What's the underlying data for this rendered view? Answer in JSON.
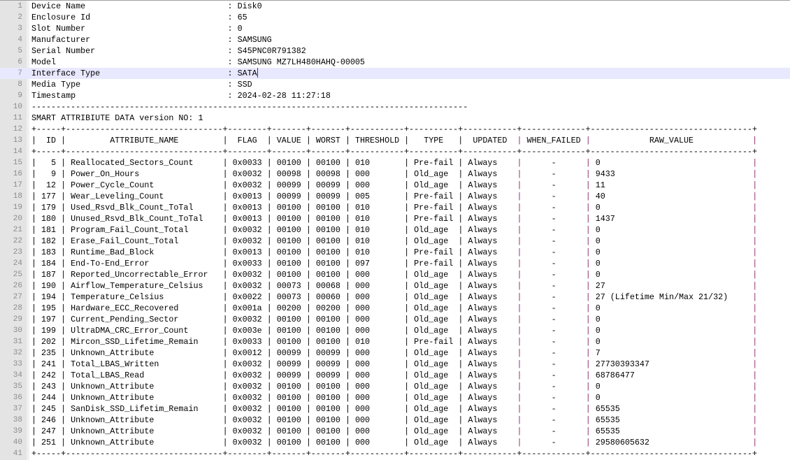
{
  "device_info": [
    {
      "label": "Device Name",
      "value": "Disk0"
    },
    {
      "label": "Enclosure Id",
      "value": "65"
    },
    {
      "label": "Slot Number",
      "value": "0"
    },
    {
      "label": "Manufacturer",
      "value": "SAMSUNG"
    },
    {
      "label": "Serial Number",
      "value": "S45PNC0R791382"
    },
    {
      "label": "Model",
      "value": "SAMSUNG MZ7LH480HAHQ-00005"
    },
    {
      "label": "Interface Type",
      "value": "SATA"
    },
    {
      "label": "Media Type",
      "value": "SSD"
    },
    {
      "label": "Timestamp",
      "value": "2024-02-28 11:27:18"
    }
  ],
  "current_line": 7,
  "smart_title": "SMART ATTRIBIUTE DATA version NO: 1",
  "table": {
    "headers": [
      "ID",
      "ATTRIBUTE_NAME",
      "FLAG",
      "VALUE",
      "WORST",
      "THRESHOLD",
      "TYPE",
      "UPDATED",
      "WHEN_FAILED",
      "RAW_VALUE"
    ],
    "rows": [
      [
        "5",
        "Reallocated_Sectors_Count",
        "0x0033",
        "00100",
        "00100",
        "010",
        "Pre-fail",
        "Always",
        "-",
        "0"
      ],
      [
        "9",
        "Power_On_Hours",
        "0x0032",
        "00098",
        "00098",
        "000",
        "Old_age",
        "Always",
        "-",
        "9433"
      ],
      [
        "12",
        "Power_Cycle_Count",
        "0x0032",
        "00099",
        "00099",
        "000",
        "Old_age",
        "Always",
        "-",
        "11"
      ],
      [
        "177",
        "Wear_Leveling_Count",
        "0x0013",
        "00099",
        "00099",
        "005",
        "Pre-fail",
        "Always",
        "-",
        "40"
      ],
      [
        "179",
        "Used_Rsvd_Blk_Count_ToTal",
        "0x0013",
        "00100",
        "00100",
        "010",
        "Pre-fail",
        "Always",
        "-",
        "0"
      ],
      [
        "180",
        "Unused_Rsvd_Blk_Count_ToTal",
        "0x0013",
        "00100",
        "00100",
        "010",
        "Pre-fail",
        "Always",
        "-",
        "1437"
      ],
      [
        "181",
        "Program_Fail_Count_Total",
        "0x0032",
        "00100",
        "00100",
        "010",
        "Old_age",
        "Always",
        "-",
        "0"
      ],
      [
        "182",
        "Erase_Fail_Count_Total",
        "0x0032",
        "00100",
        "00100",
        "010",
        "Old_age",
        "Always",
        "-",
        "0"
      ],
      [
        "183",
        "Runtime_Bad_Block",
        "0x0013",
        "00100",
        "00100",
        "010",
        "Pre-fail",
        "Always",
        "-",
        "0"
      ],
      [
        "184",
        "End-To-End_Error",
        "0x0033",
        "00100",
        "00100",
        "097",
        "Pre-fail",
        "Always",
        "-",
        "0"
      ],
      [
        "187",
        "Reported_Uncorrectable_Error",
        "0x0032",
        "00100",
        "00100",
        "000",
        "Old_age",
        "Always",
        "-",
        "0"
      ],
      [
        "190",
        "Airflow_Temperature_Celsius",
        "0x0032",
        "00073",
        "00068",
        "000",
        "Old_age",
        "Always",
        "-",
        "27"
      ],
      [
        "194",
        "Temperature_Celsius",
        "0x0022",
        "00073",
        "00060",
        "000",
        "Old_age",
        "Always",
        "-",
        "27 (Lifetime Min/Max 21/32)"
      ],
      [
        "195",
        "Hardware_ECC_Recovered",
        "0x001a",
        "00200",
        "00200",
        "000",
        "Old_age",
        "Always",
        "-",
        "0"
      ],
      [
        "197",
        "Current_Pending_Sector",
        "0x0032",
        "00100",
        "00100",
        "000",
        "Old_age",
        "Always",
        "-",
        "0"
      ],
      [
        "199",
        "UltraDMA_CRC_Error_Count",
        "0x003e",
        "00100",
        "00100",
        "000",
        "Old_age",
        "Always",
        "-",
        "0"
      ],
      [
        "202",
        "Mircon_SSD_Lifetime_Remain",
        "0x0033",
        "00100",
        "00100",
        "010",
        "Pre-fail",
        "Always",
        "-",
        "0"
      ],
      [
        "235",
        "Unknown_Attribute",
        "0x0012",
        "00099",
        "00099",
        "000",
        "Old_age",
        "Always",
        "-",
        "7"
      ],
      [
        "241",
        "Total_LBAS_Written",
        "0x0032",
        "00099",
        "00099",
        "000",
        "Old_age",
        "Always",
        "-",
        "27730393347"
      ],
      [
        "242",
        "Total_LBAS_Read",
        "0x0032",
        "00099",
        "00099",
        "000",
        "Old_age",
        "Always",
        "-",
        "68786477"
      ],
      [
        "243",
        "Unknown_Attribute",
        "0x0032",
        "00100",
        "00100",
        "000",
        "Old_age",
        "Always",
        "-",
        "0"
      ],
      [
        "244",
        "Unknown_Attribute",
        "0x0032",
        "00100",
        "00100",
        "000",
        "Old_age",
        "Always",
        "-",
        "0"
      ],
      [
        "245",
        "SanDisk_SSD_Lifetim_Remain",
        "0x0032",
        "00100",
        "00100",
        "000",
        "Old_age",
        "Always",
        "-",
        "65535"
      ],
      [
        "246",
        "Unknown_Attribute",
        "0x0032",
        "00100",
        "00100",
        "000",
        "Old_age",
        "Always",
        "-",
        "65535"
      ],
      [
        "247",
        "Unknown_Attribute",
        "0x0032",
        "00100",
        "00100",
        "000",
        "Old_age",
        "Always",
        "-",
        "65535"
      ],
      [
        "251",
        "Unknown_Attribute",
        "0x0032",
        "00100",
        "00100",
        "000",
        "Old_age",
        "Always",
        "-",
        "29580605632"
      ]
    ]
  }
}
